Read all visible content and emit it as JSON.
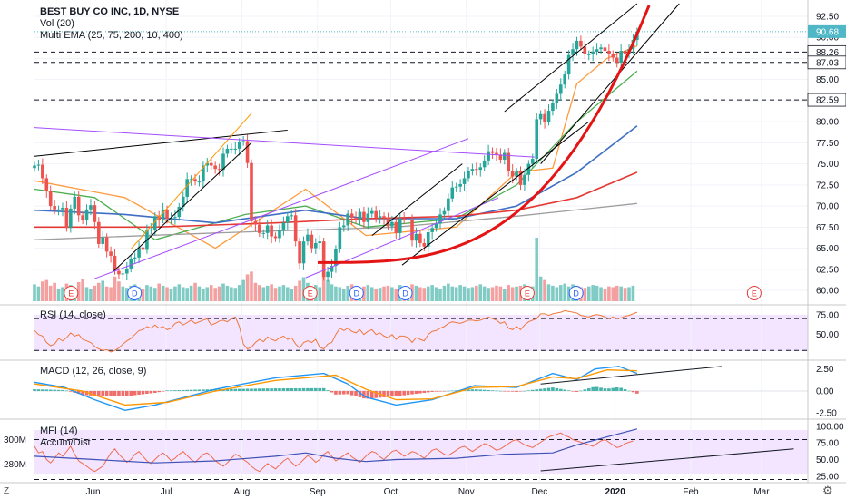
{
  "header": {
    "symbol_line": "BEST BUY CO INC, 1D, NYSE",
    "vol_label": "Vol (20)",
    "ema_label": "Multi EMA (25, 75, 200, 10, 400)"
  },
  "colors": {
    "up": "#26a69a",
    "down": "#ef5350",
    "vol_up": "#80cbc4",
    "vol_down": "#f4a0a0",
    "price_tag": "#4fb7c6",
    "rsi_band": "#f3e5ff",
    "rsi_line": "#f0783c",
    "macd_line": "#2196f3",
    "signal_line": "#ff9800",
    "mfi_line": "#ef6c50",
    "ad_line": "#3f51b5",
    "trend_black": "#000000",
    "trend_orange": "#ff9800",
    "trend_purple": "#a64dff",
    "trend_red": "#e51414",
    "ema_orange": "#ff9a3c",
    "ema_green": "#4caf50",
    "ema_blue": "#3f6fc4",
    "ema_red": "#e53935",
    "ema_gray": "#9e9e9e"
  },
  "markers": {
    "earnings": "E",
    "dividend": "D"
  },
  "corner_labels": {
    "left": "Z",
    "right": "⚙"
  },
  "chart_data": [
    {
      "id": "price",
      "type": "candlestick",
      "title": "BEST BUY CO INC, 1D, NYSE",
      "ylim": [
        58.5,
        94.0
      ],
      "y_ticks": [
        "92.50",
        "90.00",
        "87.50",
        "85.00",
        "82.50",
        "80.00",
        "77.50",
        "75.00",
        "72.50",
        "70.00",
        "67.50",
        "65.00",
        "62.50",
        "60.00"
      ],
      "current_price": "90.68",
      "horizontal_levels": [
        "88.26",
        "87.03",
        "82.59"
      ],
      "x_ticks": [
        "Jun",
        "Jul",
        "Aug",
        "Sep",
        "Oct",
        "Nov",
        "Dec",
        "2020",
        "Feb",
        "Mar"
      ],
      "x_range": [
        "2019-05-08",
        "2020-03-20"
      ],
      "series": [
        {
          "name": "Price (close, approx.)",
          "x_start": "2019-05-08",
          "x_end": "2020-01-10",
          "values": [
            74.8,
            74.9,
            73.3,
            71.8,
            70.0,
            69.6,
            69.6,
            69.8,
            67.4,
            69.7,
            71.1,
            68.9,
            68.3,
            69.6,
            70.1,
            68.1,
            65.5,
            66.3,
            64.6,
            64.1,
            62.3,
            61.9,
            62.0,
            62.6,
            63.7,
            63.9,
            65.1,
            64.8,
            67.2,
            67.2,
            68.8,
            68.4,
            69.6,
            68.5,
            68.6,
            68.7,
            69.9,
            71.1,
            73.2,
            73.2,
            72.9,
            72.9,
            74.8,
            75.1,
            74.8,
            74.4,
            74.3,
            76.2,
            76.8,
            76.8,
            76.8,
            77.6,
            77.7,
            75.1,
            68.2,
            67.8,
            66.8,
            66.8,
            67.7,
            66.4,
            66.2,
            67.2,
            68.0,
            68.8,
            68.9,
            65.8,
            63.2,
            65.8,
            66.6,
            65.0,
            65.6,
            65.8,
            61.6,
            62.2,
            62.9,
            64.9,
            67.5,
            67.7,
            69.1,
            68.6,
            68.3,
            69.3,
            68.1,
            69.1,
            69.4,
            68.6,
            68.8,
            68.6,
            67.6,
            68.1,
            66.8,
            68.5,
            68.3,
            68.4,
            65.9,
            66.7,
            65.6,
            65.2,
            66.9,
            67.4,
            67.9,
            69.0,
            69.4,
            70.9,
            72.2,
            72.3,
            72.6,
            73.3,
            74.2,
            74.4,
            74.3,
            74.6,
            75.4,
            76.5,
            76.3,
            76.1,
            75.5,
            76.3,
            74.2,
            73.5,
            74.1,
            72.5,
            73.7,
            75.0,
            75.6,
            80.3,
            80.9,
            80.0,
            81.3,
            82.2,
            83.3,
            84.4,
            85.6,
            87.9,
            88.6,
            89.6,
            88.9,
            88.0,
            88.0,
            88.3,
            88.6,
            88.8,
            88.4,
            88.0,
            87.6,
            87.0,
            88.4,
            88.0,
            88.6,
            89.7,
            90.7
          ]
        },
        {
          "name": "EMA 10 (approx.)",
          "values": [
            [
              0,
              73.0
            ],
            [
              0.15,
              71.0
            ],
            [
              0.3,
              65.0
            ],
            [
              0.45,
              72.0
            ],
            [
              0.55,
              66.5
            ],
            [
              0.7,
              67.5
            ],
            [
              0.8,
              74.0
            ],
            [
              0.86,
              74.5
            ],
            [
              0.9,
              84.5
            ],
            [
              0.95,
              87.5
            ],
            [
              1.0,
              89.0
            ]
          ]
        },
        {
          "name": "EMA 25 (approx.)",
          "values": [
            [
              0,
              72.0
            ],
            [
              0.1,
              71.0
            ],
            [
              0.2,
              66.0
            ],
            [
              0.35,
              69.0
            ],
            [
              0.45,
              70.0
            ],
            [
              0.55,
              67.5
            ],
            [
              0.7,
              68.5
            ],
            [
              0.8,
              72.5
            ],
            [
              0.9,
              80.0
            ],
            [
              1.0,
              86.0
            ]
          ]
        },
        {
          "name": "EMA 75 (approx.)",
          "values": [
            [
              0,
              69.5
            ],
            [
              0.15,
              69.0
            ],
            [
              0.3,
              68.0
            ],
            [
              0.45,
              69.5
            ],
            [
              0.55,
              68.5
            ],
            [
              0.7,
              68.5
            ],
            [
              0.8,
              70.0
            ],
            [
              0.9,
              74.0
            ],
            [
              1.0,
              79.5
            ]
          ]
        },
        {
          "name": "EMA 200 (approx.)",
          "values": [
            [
              0,
              67.5
            ],
            [
              0.2,
              67.5
            ],
            [
              0.4,
              68.0
            ],
            [
              0.55,
              68.5
            ],
            [
              0.7,
              68.8
            ],
            [
              0.8,
              69.5
            ],
            [
              0.9,
              71.0
            ],
            [
              1.0,
              74.0
            ]
          ]
        },
        {
          "name": "EMA 400 (approx.)",
          "values": [
            [
              0,
              66.0
            ],
            [
              0.3,
              66.8
            ],
            [
              0.6,
              67.5
            ],
            [
              0.8,
              68.8
            ],
            [
              1.0,
              70.3
            ]
          ]
        }
      ]
    },
    {
      "id": "volume",
      "type": "bar",
      "title": "Vol (20)",
      "values": [
        2.4,
        2.1,
        2.8,
        3.0,
        2.2,
        2.6,
        1.8,
        2.0,
        2.5,
        2.3,
        1.9,
        2.7,
        3.1,
        2.0,
        1.8,
        2.2,
        2.6,
        2.9,
        2.1,
        2.0,
        3.5,
        2.8,
        2.1,
        1.9,
        2.2,
        2.4,
        2.0,
        1.8,
        2.3,
        2.1,
        1.9,
        2.5,
        2.2,
        2.0,
        1.8,
        2.1,
        2.4,
        2.0,
        1.9,
        2.2,
        2.6,
        2.1,
        1.8,
        2.0,
        2.3,
        1.9,
        2.1,
        2.5,
        2.2,
        2.0,
        1.9,
        2.3,
        3.0,
        3.8,
        4.2,
        2.6,
        2.3,
        2.0,
        2.2,
        2.4,
        1.9,
        2.1,
        2.3,
        2.0,
        1.8,
        2.2,
        2.9,
        3.4,
        2.6,
        2.1,
        2.3,
        2.0,
        4.0,
        3.0,
        2.4,
        2.1,
        2.0,
        1.8,
        2.2,
        2.4,
        2.0,
        1.9,
        2.1,
        2.3,
        2.0,
        1.8,
        1.9,
        2.1,
        2.2,
        2.0,
        1.8,
        2.3,
        2.1,
        1.9,
        2.4,
        2.2,
        2.0,
        1.9,
        2.1,
        2.3,
        2.0,
        1.8,
        2.2,
        2.5,
        2.1,
        2.0,
        2.3,
        2.1,
        1.9,
        2.0,
        2.2,
        2.4,
        2.1,
        1.9,
        2.0,
        2.2,
        2.1,
        1.8,
        2.3,
        2.0,
        2.1,
        2.2,
        2.4,
        2.0,
        2.1,
        9.0,
        3.5,
        3.0,
        2.4,
        2.2,
        2.0,
        2.3,
        2.5,
        2.1,
        2.4,
        2.2,
        2.0,
        1.9,
        2.1,
        2.3,
        2.2,
        2.0,
        1.8,
        2.1,
        2.0,
        2.2,
        2.1,
        1.9,
        2.0,
        2.2
      ]
    },
    {
      "id": "rsi",
      "type": "line",
      "title": "RSI (14, close)",
      "y_ticks": [
        "75.00",
        "50.00"
      ],
      "ylim": [
        20,
        85
      ],
      "band": [
        30,
        70
      ],
      "values": [
        55,
        50,
        48,
        40,
        36,
        38,
        45,
        42,
        46,
        52,
        48,
        50,
        44,
        42,
        40,
        35,
        32,
        30,
        31,
        28,
        30,
        33,
        38,
        42,
        45,
        50,
        55,
        56,
        60,
        58,
        62,
        58,
        60,
        56,
        58,
        64,
        66,
        62,
        65,
        68,
        64,
        66,
        68,
        70,
        62,
        64,
        67,
        68,
        66,
        70,
        72,
        60,
        38,
        32,
        34,
        40,
        44,
        41,
        47,
        44,
        42,
        46,
        48,
        44,
        46,
        38,
        33,
        40,
        42,
        40,
        44,
        34,
        32,
        38,
        40,
        50,
        58,
        55,
        58,
        54,
        52,
        56,
        50,
        54,
        56,
        50,
        52,
        48,
        46,
        50,
        44,
        48,
        48,
        46,
        40,
        46,
        44,
        42,
        50,
        54,
        55,
        58,
        60,
        64,
        66,
        65,
        64,
        66,
        68,
        68,
        67,
        68,
        70,
        72,
        70,
        68,
        64,
        66,
        58,
        56,
        60,
        56,
        62,
        66,
        68,
        70,
        76,
        76,
        74,
        76,
        77,
        78,
        80,
        79,
        78,
        77,
        74,
        73,
        72,
        74,
        75,
        74,
        72,
        70,
        72,
        70,
        71,
        73,
        74,
        76,
        78
      ]
    },
    {
      "id": "macd",
      "type": "line",
      "title": "MACD (12, 26, close, 9)",
      "y_ticks": [
        "2.50",
        "0.00",
        "-2.50"
      ],
      "ylim": [
        -3.0,
        3.3
      ],
      "series": [
        {
          "name": "MACD",
          "values": [
            [
              0,
              1.0
            ],
            [
              0.05,
              0.4
            ],
            [
              0.1,
              -1.0
            ],
            [
              0.15,
              -2.2
            ],
            [
              0.2,
              -1.6
            ],
            [
              0.3,
              0.2
            ],
            [
              0.4,
              1.5
            ],
            [
              0.48,
              2.0
            ],
            [
              0.52,
              0.8
            ],
            [
              0.55,
              -0.7
            ],
            [
              0.6,
              -1.6
            ],
            [
              0.66,
              -1.0
            ],
            [
              0.73,
              0.6
            ],
            [
              0.8,
              0.4
            ],
            [
              0.86,
              2.0
            ],
            [
              0.9,
              1.3
            ],
            [
              0.93,
              2.5
            ],
            [
              0.97,
              2.8
            ],
            [
              1.0,
              2.0
            ]
          ]
        },
        {
          "name": "Signal",
          "values": [
            [
              0,
              0.8
            ],
            [
              0.08,
              0.0
            ],
            [
              0.15,
              -1.6
            ],
            [
              0.22,
              -1.3
            ],
            [
              0.3,
              0.0
            ],
            [
              0.4,
              1.2
            ],
            [
              0.5,
              1.8
            ],
            [
              0.55,
              0.2
            ],
            [
              0.6,
              -1.0
            ],
            [
              0.66,
              -0.9
            ],
            [
              0.73,
              0.4
            ],
            [
              0.8,
              0.5
            ],
            [
              0.86,
              1.6
            ],
            [
              0.9,
              1.4
            ],
            [
              0.95,
              2.4
            ],
            [
              1.0,
              2.3
            ]
          ]
        }
      ]
    },
    {
      "id": "mfi_ad",
      "type": "line",
      "title": "MFI (14)",
      "title2": "Accum/Dist",
      "y_ticks": [
        "100.00",
        "75.00",
        "50.00",
        "25.00"
      ],
      "left_ticks": [
        "300M",
        "280M"
      ],
      "ylim": [
        18,
        108
      ],
      "band": [
        20,
        80
      ],
      "series": [
        {
          "name": "MFI (14)",
          "values": [
            70,
            60,
            62,
            50,
            45,
            52,
            60,
            55,
            62,
            70,
            58,
            48,
            44,
            40,
            35,
            32,
            36,
            40,
            50,
            60,
            66,
            58,
            52,
            46,
            50,
            58,
            62,
            55,
            48,
            44,
            50,
            56,
            60,
            55,
            48,
            52,
            58,
            62,
            56,
            50,
            46,
            52,
            58,
            60,
            55,
            48,
            44,
            40,
            45,
            52,
            58,
            55,
            50,
            46,
            40,
            35,
            32,
            38,
            44,
            40,
            36,
            42,
            48,
            52,
            46,
            40,
            44,
            50,
            56,
            52,
            46,
            50,
            58,
            62,
            55,
            48,
            52,
            56,
            60,
            54,
            50,
            46,
            52,
            58,
            62,
            60,
            54,
            50,
            56,
            62,
            64,
            60,
            55,
            58,
            62,
            60,
            56,
            52,
            58,
            64,
            66,
            62,
            58,
            56,
            60,
            64,
            68,
            70,
            66,
            62,
            66,
            70,
            74,
            72,
            68,
            64,
            66,
            70,
            74,
            78,
            80,
            76,
            72,
            70,
            68,
            72,
            76,
            80,
            84,
            86,
            88,
            90,
            86,
            84,
            80,
            78,
            76,
            74,
            72,
            70,
            74,
            78,
            80,
            76,
            72,
            68,
            70,
            74,
            76,
            78
          ]
        },
        {
          "name": "Accum/Dist",
          "values": [
            [
              0,
              55
            ],
            [
              0.1,
              50
            ],
            [
              0.2,
              45
            ],
            [
              0.3,
              48
            ],
            [
              0.4,
              55
            ],
            [
              0.45,
              60
            ],
            [
              0.5,
              52
            ],
            [
              0.55,
              47
            ],
            [
              0.6,
              50
            ],
            [
              0.7,
              52
            ],
            [
              0.78,
              58
            ],
            [
              0.86,
              60
            ],
            [
              0.9,
              72
            ],
            [
              0.95,
              84
            ],
            [
              1.0,
              96
            ]
          ]
        }
      ]
    }
  ]
}
